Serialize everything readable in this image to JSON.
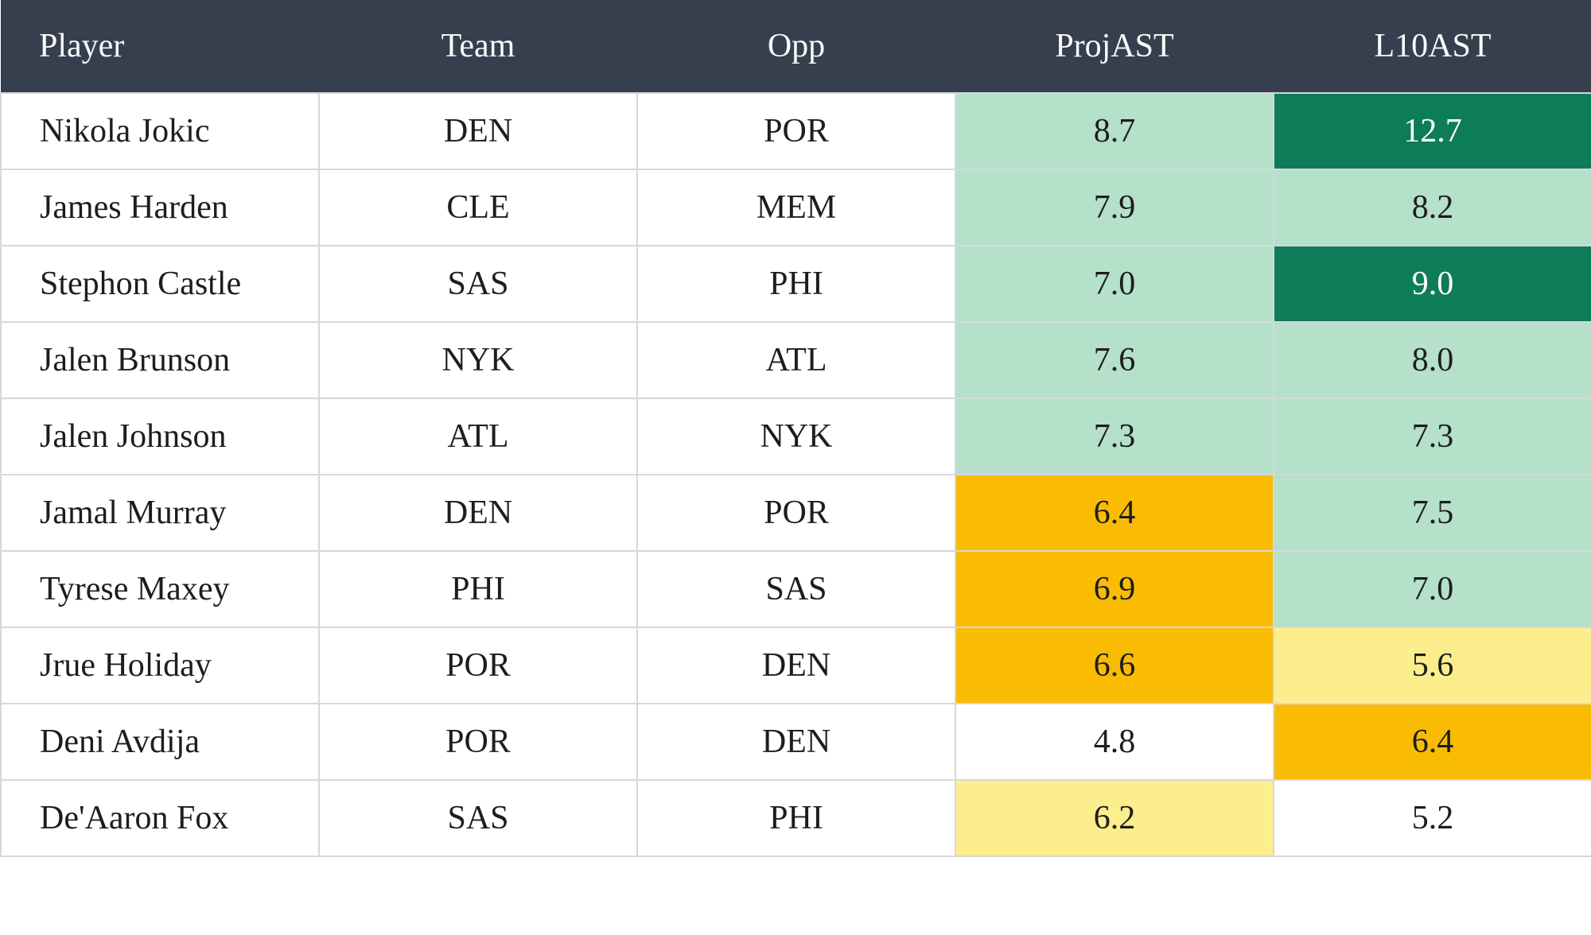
{
  "table": {
    "columns": [
      {
        "key": "player",
        "label": "Player"
      },
      {
        "key": "team",
        "label": "Team"
      },
      {
        "key": "opp",
        "label": "Opp"
      },
      {
        "key": "proj",
        "label": "ProjAST"
      },
      {
        "key": "l10",
        "label": "L10AST"
      }
    ],
    "rows": [
      {
        "player": "Nikola Jokic",
        "team": "DEN",
        "opp": "POR",
        "proj": "8.7",
        "proj_level": "good",
        "l10": "12.7",
        "l10_level": "great"
      },
      {
        "player": "James Harden",
        "team": "CLE",
        "opp": "MEM",
        "proj": "7.9",
        "proj_level": "good",
        "l10": "8.2",
        "l10_level": "good"
      },
      {
        "player": "Stephon Castle",
        "team": "SAS",
        "opp": "PHI",
        "proj": "7.0",
        "proj_level": "good",
        "l10": "9.0",
        "l10_level": "great"
      },
      {
        "player": "Jalen Brunson",
        "team": "NYK",
        "opp": "ATL",
        "proj": "7.6",
        "proj_level": "good",
        "l10": "8.0",
        "l10_level": "good"
      },
      {
        "player": "Jalen Johnson",
        "team": "ATL",
        "opp": "NYK",
        "proj": "7.3",
        "proj_level": "good",
        "l10": "7.3",
        "l10_level": "good"
      },
      {
        "player": "Jamal Murray",
        "team": "DEN",
        "opp": "POR",
        "proj": "6.4",
        "proj_level": "mid",
        "l10": "7.5",
        "l10_level": "good"
      },
      {
        "player": "Tyrese Maxey",
        "team": "PHI",
        "opp": "SAS",
        "proj": "6.9",
        "proj_level": "mid",
        "l10": "7.0",
        "l10_level": "good"
      },
      {
        "player": "Jrue Holiday",
        "team": "POR",
        "opp": "DEN",
        "proj": "6.6",
        "proj_level": "mid",
        "l10": "5.6",
        "l10_level": "low"
      },
      {
        "player": "Deni Avdija",
        "team": "POR",
        "opp": "DEN",
        "proj": "4.8",
        "proj_level": "none",
        "l10": "6.4",
        "l10_level": "mid"
      },
      {
        "player": "De'Aaron Fox",
        "team": "SAS",
        "opp": "PHI",
        "proj": "6.2",
        "proj_level": "low",
        "l10": "5.2",
        "l10_level": "none"
      }
    ]
  },
  "colors": {
    "header_bg": "#363F4E",
    "header_text": "#FAFAFA",
    "body_text": "#1D1D1D",
    "grid_line": "#D5D8DC",
    "levels": {
      "great": {
        "bg": "#0D7C59",
        "text": "#FFFFFF"
      },
      "good": {
        "bg": "#B5E0CA",
        "text": "#1D1D1D"
      },
      "mid": {
        "bg": "#F9BC03",
        "text": "#1D1D1D"
      },
      "low": {
        "bg": "#FDEE8D",
        "text": "#1D1D1D"
      },
      "none": {
        "bg": "#FFFFFF",
        "text": "#1D1D1D"
      }
    }
  }
}
